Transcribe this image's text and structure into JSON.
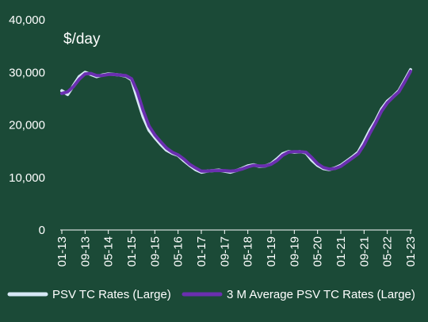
{
  "chart_data": {
    "type": "line",
    "unit_label": "$/day",
    "ylim": [
      0,
      40000
    ],
    "y_ticks": [
      "0",
      "10,000",
      "20,000",
      "30,000",
      "40,000"
    ],
    "x_ticks": [
      "01-13",
      "09-13",
      "05-14",
      "01-15",
      "09-15",
      "05-16",
      "01-17",
      "09-17",
      "05-18",
      "01-19",
      "09-19",
      "05-20",
      "01-21",
      "09-21",
      "05-22",
      "01-23"
    ],
    "x_range": [
      "2013-01",
      "2023-01"
    ],
    "grid": false,
    "legend_position": "bottom",
    "series": [
      {
        "name": "PSV TC Rates (Large)",
        "color": "#d6e8f5",
        "points": [
          [
            "2013-01",
            26500
          ],
          [
            "2013-03",
            25800
          ],
          [
            "2013-05",
            27500
          ],
          [
            "2013-07",
            29200
          ],
          [
            "2013-09",
            30000
          ],
          [
            "2013-11",
            29600
          ],
          [
            "2014-01",
            29200
          ],
          [
            "2014-03",
            29500
          ],
          [
            "2014-05",
            29700
          ],
          [
            "2014-07",
            29600
          ],
          [
            "2014-09",
            29500
          ],
          [
            "2014-11",
            29300
          ],
          [
            "2015-01",
            28600
          ],
          [
            "2015-03",
            25000
          ],
          [
            "2015-05",
            21500
          ],
          [
            "2015-07",
            19000
          ],
          [
            "2015-09",
            17600
          ],
          [
            "2015-11",
            16300
          ],
          [
            "2016-01",
            15200
          ],
          [
            "2016-03",
            14600
          ],
          [
            "2016-05",
            14200
          ],
          [
            "2016-07",
            13200
          ],
          [
            "2016-09",
            12300
          ],
          [
            "2016-11",
            11500
          ],
          [
            "2017-01",
            11000
          ],
          [
            "2017-03",
            11200
          ],
          [
            "2017-05",
            11300
          ],
          [
            "2017-07",
            11400
          ],
          [
            "2017-09",
            11200
          ],
          [
            "2017-11",
            11000
          ],
          [
            "2018-01",
            11300
          ],
          [
            "2018-03",
            11700
          ],
          [
            "2018-05",
            12200
          ],
          [
            "2018-07",
            12400
          ],
          [
            "2018-09",
            12100
          ],
          [
            "2018-11",
            12200
          ],
          [
            "2019-01",
            12600
          ],
          [
            "2019-03",
            13500
          ],
          [
            "2019-05",
            14500
          ],
          [
            "2019-07",
            14900
          ],
          [
            "2019-09",
            14800
          ],
          [
            "2019-11",
            14900
          ],
          [
            "2020-01",
            14700
          ],
          [
            "2020-03",
            13300
          ],
          [
            "2020-05",
            12300
          ],
          [
            "2020-07",
            11700
          ],
          [
            "2020-09",
            11500
          ],
          [
            "2020-11",
            11800
          ],
          [
            "2021-01",
            12300
          ],
          [
            "2021-03",
            13100
          ],
          [
            "2021-05",
            13900
          ],
          [
            "2021-07",
            14800
          ],
          [
            "2021-09",
            16800
          ],
          [
            "2021-11",
            19000
          ],
          [
            "2022-01",
            20800
          ],
          [
            "2022-03",
            23000
          ],
          [
            "2022-05",
            24500
          ],
          [
            "2022-07",
            25400
          ],
          [
            "2022-09",
            26500
          ],
          [
            "2022-11",
            28500
          ],
          [
            "2023-01",
            30500
          ]
        ]
      },
      {
        "name": "3 M Average PSV TC Rates (Large)",
        "color": "#6a2fb0",
        "points": [
          [
            "2013-01",
            26000
          ],
          [
            "2013-03",
            26300
          ],
          [
            "2013-05",
            27300
          ],
          [
            "2013-07",
            28700
          ],
          [
            "2013-09",
            29700
          ],
          [
            "2013-11",
            29800
          ],
          [
            "2014-01",
            29400
          ],
          [
            "2014-03",
            29400
          ],
          [
            "2014-05",
            29600
          ],
          [
            "2014-07",
            29600
          ],
          [
            "2014-09",
            29500
          ],
          [
            "2014-11",
            29400
          ],
          [
            "2015-01",
            28800
          ],
          [
            "2015-03",
            26300
          ],
          [
            "2015-05",
            22700
          ],
          [
            "2015-07",
            19800
          ],
          [
            "2015-09",
            18100
          ],
          [
            "2015-11",
            16800
          ],
          [
            "2016-01",
            15600
          ],
          [
            "2016-03",
            14800
          ],
          [
            "2016-05",
            14300
          ],
          [
            "2016-07",
            13500
          ],
          [
            "2016-09",
            12500
          ],
          [
            "2016-11",
            11800
          ],
          [
            "2017-01",
            11200
          ],
          [
            "2017-03",
            11200
          ],
          [
            "2017-05",
            11300
          ],
          [
            "2017-07",
            11300
          ],
          [
            "2017-09",
            11300
          ],
          [
            "2017-11",
            11200
          ],
          [
            "2018-01",
            11300
          ],
          [
            "2018-03",
            11600
          ],
          [
            "2018-05",
            12000
          ],
          [
            "2018-07",
            12300
          ],
          [
            "2018-09",
            12200
          ],
          [
            "2018-11",
            12200
          ],
          [
            "2019-01",
            12500
          ],
          [
            "2019-03",
            13200
          ],
          [
            "2019-05",
            14200
          ],
          [
            "2019-07",
            14800
          ],
          [
            "2019-09",
            14900
          ],
          [
            "2019-11",
            14900
          ],
          [
            "2020-01",
            14800
          ],
          [
            "2020-03",
            13800
          ],
          [
            "2020-05",
            12600
          ],
          [
            "2020-07",
            11900
          ],
          [
            "2020-09",
            11600
          ],
          [
            "2020-11",
            11700
          ],
          [
            "2021-01",
            12100
          ],
          [
            "2021-03",
            12900
          ],
          [
            "2021-05",
            13700
          ],
          [
            "2021-07",
            14500
          ],
          [
            "2021-09",
            16200
          ],
          [
            "2021-11",
            18400
          ],
          [
            "2022-01",
            20400
          ],
          [
            "2022-03",
            22600
          ],
          [
            "2022-05",
            24200
          ],
          [
            "2022-07",
            25300
          ],
          [
            "2022-09",
            26300
          ],
          [
            "2022-11",
            28200
          ],
          [
            "2023-01",
            30200
          ]
        ]
      }
    ]
  }
}
